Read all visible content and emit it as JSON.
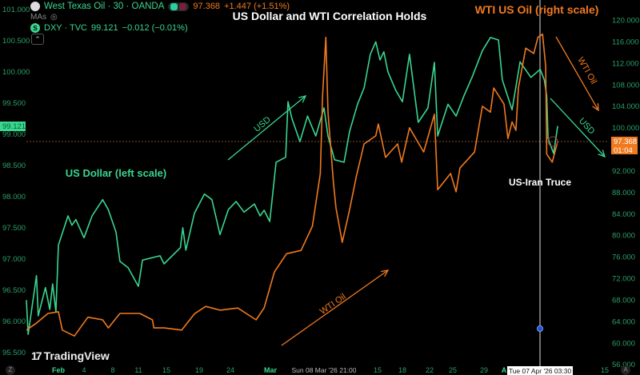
{
  "colors": {
    "usd": "#3ad68f",
    "wti": "#f07a1f",
    "axis_text": "#2c9f69",
    "background": "#000000"
  },
  "legend": {
    "wti": {
      "symbol": "West Texas Oil · 30 · OANDA",
      "price": "97.368",
      "change": "+1.447 (+1.51%)",
      "icon": "oil-drop-icon"
    },
    "mas_label": "MAs",
    "mas_icon": "eye-hidden-icon",
    "dxy": {
      "symbol": "DXY · TVC",
      "price": "99.121",
      "change": "−0.012 (−0.01%)",
      "icon": "dollar-icon",
      "icon_glyph": "S"
    },
    "collapse_glyph": "⌃"
  },
  "branding": {
    "logo_mark": "17",
    "name": "TradingView"
  },
  "buttons": {
    "timezone": "Z",
    "auto_scale": "A"
  },
  "chart_data": {
    "type": "line",
    "title": "US Dollar and WTI Correlation Holds",
    "annotations": {
      "wti_title": "WTI US Oil (right scale)",
      "usd_title": "US Dollar (left scale)",
      "usd_up": "USD",
      "wti_up": "WTI Oil",
      "wti_down": "WTI Oil",
      "usd_down": "USD",
      "event": "US-Iran Truce"
    },
    "left_axis": {
      "ticks": [
        "101.000",
        "100.500",
        "100.000",
        "99.500",
        "99.000",
        "98.500",
        "98.000",
        "97.500",
        "97.000",
        "96.500",
        "96.000",
        "95.500"
      ],
      "range": [
        95.5,
        101.0
      ],
      "current_label": "99.121"
    },
    "right_axis": {
      "ticks": [
        "120.000",
        "116.000",
        "112.000",
        "108.000",
        "104.000",
        "100.000",
        "92.000",
        "88.000",
        "84.000",
        "80.000",
        "76.000",
        "72.000",
        "68.000",
        "64.000",
        "60.000",
        "56.000"
      ],
      "range": [
        56,
        120
      ],
      "current_label": "97.368",
      "countdown": "01:04"
    },
    "x_axis": {
      "ticks": [
        {
          "label": "Feb",
          "date": "2026-02-01T00:00",
          "major": true
        },
        {
          "label": "4",
          "date": "2026-02-04T00:00"
        },
        {
          "label": "8",
          "date": "2026-02-08T00:00"
        },
        {
          "label": "11",
          "date": "2026-02-11T00:00"
        },
        {
          "label": "15",
          "date": "2026-02-15T00:00"
        },
        {
          "label": "19",
          "date": "2026-02-19T00:00"
        },
        {
          "label": "24",
          "date": "2026-02-24T00:00"
        },
        {
          "label": "Mar",
          "date": "2026-03-01T00:00",
          "major": true
        },
        {
          "label": "Sun 08 Mar '26  21:00",
          "date": "2026-03-08T21:00",
          "highlight": true
        },
        {
          "label": "15",
          "date": "2026-03-15T00:00"
        },
        {
          "label": "18",
          "date": "2026-03-18T00:00"
        },
        {
          "label": "22",
          "date": "2026-03-22T00:00"
        },
        {
          "label": "25",
          "date": "2026-03-25T00:00"
        },
        {
          "label": "29",
          "date": "2026-03-29T00:00"
        },
        {
          "label": "A",
          "date": "2026-04-01T00:00",
          "major": true
        },
        {
          "label": "15",
          "date": "2026-04-15T00:00"
        }
      ],
      "crosshair_label": "Tue 07 Apr '26  03:30",
      "crosshair_date": "2026-04-07T03:30"
    },
    "grid": false,
    "series": [
      {
        "name": "DXY · TVC",
        "axis": "left",
        "points": [
          [
            "2026-01-28T07:00",
            96.33
          ],
          [
            "2026-01-28T12:00",
            95.78
          ],
          [
            "2026-01-29T11:00",
            96.72
          ],
          [
            "2026-01-29T16:00",
            96.08
          ],
          [
            "2026-01-30T12:00",
            96.53
          ],
          [
            "2026-01-31T00:00",
            96.18
          ],
          [
            "2026-01-31T08:00",
            96.59
          ],
          [
            "2026-01-31T17:00",
            96.14
          ],
          [
            "2026-02-01T00:00",
            97.21
          ],
          [
            "2026-02-02T03:00",
            97.68
          ],
          [
            "2026-02-02T14:00",
            97.53
          ],
          [
            "2026-02-03T01:00",
            97.62
          ],
          [
            "2026-02-04T00:00",
            97.33
          ],
          [
            "2026-02-05T03:00",
            97.68
          ],
          [
            "2026-02-06T14:00",
            97.94
          ],
          [
            "2026-02-07T09:00",
            97.78
          ],
          [
            "2026-02-08T09:00",
            97.42
          ],
          [
            "2026-02-08T20:00",
            96.95
          ],
          [
            "2026-02-09T19:00",
            96.85
          ],
          [
            "2026-02-11T00:00",
            96.55
          ],
          [
            "2026-02-11T14:00",
            96.97
          ],
          [
            "2026-02-14T02:00",
            97.04
          ],
          [
            "2026-02-14T16:00",
            96.91
          ],
          [
            "2026-02-16T17:00",
            97.17
          ],
          [
            "2026-02-17T00:00",
            97.49
          ],
          [
            "2026-02-17T09:00",
            97.13
          ],
          [
            "2026-02-18T10:00",
            97.72
          ],
          [
            "2026-02-19T20:00",
            98.03
          ],
          [
            "2026-02-21T01:00",
            97.94
          ],
          [
            "2026-02-22T08:00",
            97.38
          ],
          [
            "2026-02-23T16:00",
            97.78
          ],
          [
            "2026-02-24T17:00",
            97.91
          ],
          [
            "2026-02-25T17:00",
            97.74
          ],
          [
            "2026-02-27T00:00",
            97.87
          ],
          [
            "2026-02-27T17:00",
            97.68
          ],
          [
            "2026-02-28T05:00",
            97.77
          ],
          [
            "2026-02-28T22:00",
            97.59
          ],
          [
            "2026-03-01T20:00",
            98.54
          ],
          [
            "2026-03-03T06:00",
            98.62
          ],
          [
            "2026-03-03T14:00",
            99.51
          ],
          [
            "2026-03-04T04:00",
            99.24
          ],
          [
            "2026-03-05T08:00",
            98.87
          ],
          [
            "2026-03-06T11:00",
            99.28
          ],
          [
            "2026-03-07T16:00",
            98.96
          ],
          [
            "2026-03-08T21:00",
            99.41
          ],
          [
            "2026-03-09T08:00",
            98.96
          ],
          [
            "2026-03-10T02:00",
            98.58
          ],
          [
            "2026-03-11T04:00",
            98.54
          ],
          [
            "2026-03-11T19:00",
            99.03
          ],
          [
            "2026-03-12T17:00",
            99.47
          ],
          [
            "2026-03-13T11:00",
            99.73
          ],
          [
            "2026-03-14T04:00",
            100.27
          ],
          [
            "2026-03-14T19:00",
            100.47
          ],
          [
            "2026-03-15T07:00",
            100.18
          ],
          [
            "2026-03-15T18:00",
            100.31
          ],
          [
            "2026-03-16T06:00",
            99.99
          ],
          [
            "2026-03-17T05:00",
            99.69
          ],
          [
            "2026-03-18T00:00",
            99.51
          ],
          [
            "2026-03-19T01:00",
            100.27
          ],
          [
            "2026-03-20T08:00",
            99.18
          ],
          [
            "2026-03-21T18:00",
            99.41
          ],
          [
            "2026-03-22T15:00",
            100.14
          ],
          [
            "2026-03-23T01:00",
            98.96
          ],
          [
            "2026-03-24T09:00",
            99.47
          ],
          [
            "2026-03-25T10:00",
            99.28
          ],
          [
            "2026-03-26T10:00",
            99.6
          ],
          [
            "2026-03-27T11:00",
            99.9
          ],
          [
            "2026-03-28T19:00",
            100.33
          ],
          [
            "2026-03-29T23:00",
            100.54
          ],
          [
            "2026-03-31T04:00",
            100.5
          ],
          [
            "2026-03-31T18:00",
            99.86
          ],
          [
            "2026-04-02T09:00",
            99.38
          ],
          [
            "2026-04-03T18:00",
            100.15
          ],
          [
            "2026-04-05T14:00",
            99.9
          ],
          [
            "2026-04-07T04:00",
            100.03
          ],
          [
            "2026-04-07T16:00",
            99.86
          ],
          [
            "2026-04-07T23:00",
            99.6
          ],
          [
            "2026-04-08T03:00",
            98.92
          ],
          [
            "2026-04-08T19:00",
            98.68
          ],
          [
            "2026-04-09T07:00",
            99.121
          ]
        ]
      },
      {
        "name": "West Texas Oil · 30 · OANDA",
        "axis": "right",
        "points": [
          [
            "2026-01-28T07:00",
            62.3
          ],
          [
            "2026-01-29T09:00",
            63.5
          ],
          [
            "2026-01-30T19:00",
            65.4
          ],
          [
            "2026-02-01T00:00",
            65.7
          ],
          [
            "2026-02-01T11:00",
            62.3
          ],
          [
            "2026-02-02T21:00",
            61.2
          ],
          [
            "2026-02-04T13:00",
            64.7
          ],
          [
            "2026-02-06T14:00",
            64.2
          ],
          [
            "2026-02-07T09:00",
            62.7
          ],
          [
            "2026-02-08T20:00",
            65.4
          ],
          [
            "2026-02-11T05:00",
            65.4
          ],
          [
            "2026-02-13T00:00",
            64.2
          ],
          [
            "2026-02-13T05:00",
            62.7
          ],
          [
            "2026-02-14T16:00",
            62.7
          ],
          [
            "2026-02-16T21:00",
            62.3
          ],
          [
            "2026-02-18T10:00",
            65.3
          ],
          [
            "2026-02-20T01:00",
            66.7
          ],
          [
            "2026-02-22T08:00",
            66.0
          ],
          [
            "2026-02-24T22:00",
            66.4
          ],
          [
            "2026-02-27T05:00",
            64.2
          ],
          [
            "2026-02-28T05:00",
            66.4
          ],
          [
            "2026-03-01T14:00",
            73.1
          ],
          [
            "2026-03-03T09:00",
            76.5
          ],
          [
            "2026-03-05T12:00",
            77.1
          ],
          [
            "2026-03-07T04:00",
            81.6
          ],
          [
            "2026-03-08T08:00",
            91.4
          ],
          [
            "2026-03-08T16:00",
            105.8
          ],
          [
            "2026-03-09T02:00",
            116.7
          ],
          [
            "2026-03-09T08:00",
            102.8
          ],
          [
            "2026-03-09T23:00",
            89.5
          ],
          [
            "2026-03-10T06:00",
            85.0
          ],
          [
            "2026-03-10T23:00",
            78.6
          ],
          [
            "2026-03-11T19:00",
            84.6
          ],
          [
            "2026-03-12T14:00",
            91.0
          ],
          [
            "2026-03-13T11:00",
            96.9
          ],
          [
            "2026-03-14T19:00",
            98.4
          ],
          [
            "2026-03-15T02:00",
            100.6
          ],
          [
            "2026-03-15T23:00",
            94.4
          ],
          [
            "2026-03-17T10:00",
            96.9
          ],
          [
            "2026-03-17T22:00",
            93.5
          ],
          [
            "2026-03-19T01:00",
            99.9
          ],
          [
            "2026-03-21T03:00",
            95.4
          ],
          [
            "2026-03-22T15:00",
            102.4
          ],
          [
            "2026-03-23T01:00",
            88.4
          ],
          [
            "2026-03-24T17:00",
            91.4
          ],
          [
            "2026-03-25T10:00",
            88.0
          ],
          [
            "2026-03-25T22:00",
            92.4
          ],
          [
            "2026-03-27T19:00",
            95.4
          ],
          [
            "2026-03-28T19:00",
            103.9
          ],
          [
            "2026-03-29T23:00",
            102.8
          ],
          [
            "2026-03-30T11:00",
            107.3
          ],
          [
            "2026-04-01T00:00",
            104.3
          ],
          [
            "2026-04-01T16:00",
            97.9
          ],
          [
            "2026-04-02T09:00",
            101.0
          ],
          [
            "2026-04-03T01:00",
            99.4
          ],
          [
            "2026-04-03T11:00",
            107.3
          ],
          [
            "2026-04-04T17:00",
            114.7
          ],
          [
            "2026-04-06T02:00",
            113.7
          ],
          [
            "2026-04-06T19:00",
            116.7
          ],
          [
            "2026-04-07T11:00",
            117.3
          ],
          [
            "2026-04-07T20:00",
            111.3
          ],
          [
            "2026-04-07T23:00",
            95.0
          ],
          [
            "2026-04-08T15:00",
            93.5
          ],
          [
            "2026-04-09T03:00",
            96.4
          ],
          [
            "2026-04-09T07:00",
            97.368
          ]
        ]
      }
    ]
  }
}
